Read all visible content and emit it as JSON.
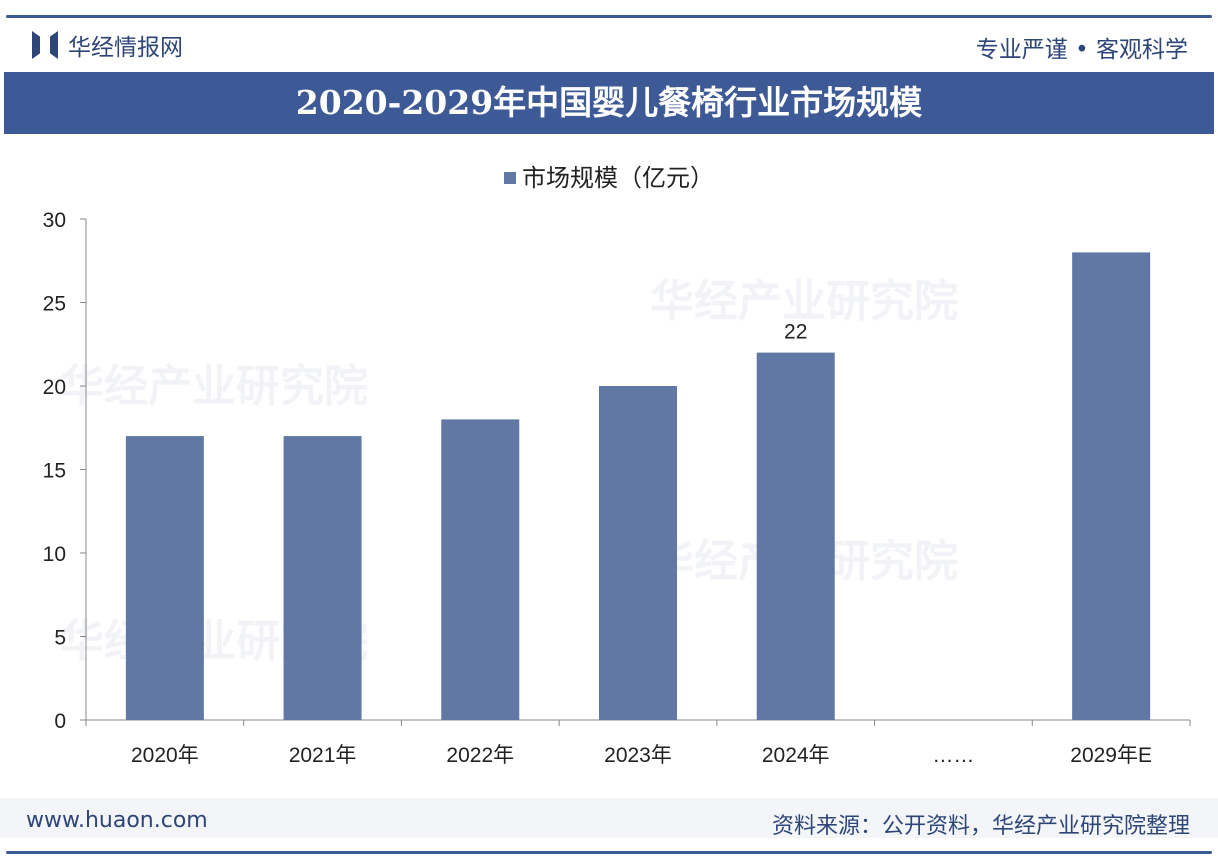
{
  "header": {
    "brand": "华经情报网",
    "slogan": "专业严谨 • 客观科学",
    "title": "2020-2029年中国婴儿餐椅行业市场规模"
  },
  "footer": {
    "url": "www.huaon.com",
    "source": "资料来源：公开资料，华经产业研究院整理"
  },
  "watermark": "华经产业研究院",
  "colors": {
    "bar": "#6078a3",
    "band": "#3d5a96",
    "text": "#2e4677"
  },
  "chart_data": {
    "type": "bar",
    "title": "2020-2029年中国婴儿餐椅行业市场规模",
    "legend": "市场规模（亿元）",
    "legend_position": "top-center",
    "categories": [
      "2020年",
      "2021年",
      "2022年",
      "2023年",
      "2024年",
      "……",
      "2029年E"
    ],
    "values": [
      17,
      17,
      18,
      20,
      22,
      null,
      28
    ],
    "data_labels": {
      "4": "22"
    },
    "ylim": [
      0,
      30
    ],
    "yticks": [
      "0",
      "5",
      "10",
      "15",
      "20",
      "25",
      "30"
    ],
    "xlabel": "",
    "ylabel": "",
    "grid": false
  }
}
